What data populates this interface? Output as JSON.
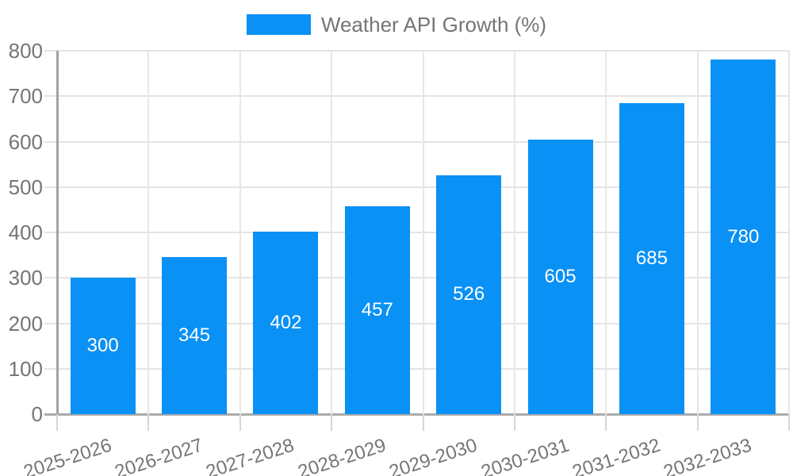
{
  "chart_data": {
    "type": "bar",
    "title": "",
    "xlabel": "",
    "ylabel": "",
    "legend": {
      "label": "Weather API Growth (%)",
      "position": "top-center"
    },
    "categories": [
      "2025-2026",
      "2026-2027",
      "2027-2028",
      "2028-2029",
      "2029-2030",
      "2030-2031",
      "2031-2032",
      "2032-2033"
    ],
    "series": [
      {
        "name": "Weather API Growth (%)",
        "values": [
          300,
          345,
          402,
          457,
          526,
          605,
          685,
          780
        ]
      }
    ],
    "value_labels_shown": true,
    "value_label_position": "inside-center",
    "ylim": [
      0,
      800
    ],
    "yticks": [
      0,
      100,
      200,
      300,
      400,
      500,
      600,
      700,
      800
    ],
    "grid": "horizontal-and-vertical",
    "x_labels_rotated": true,
    "colors": {
      "bar": "#0a91f5",
      "value_label": "#ffffff",
      "axis_text": "#757575",
      "axis_line": "#a6a6a6",
      "gridline": "#e5e5e5",
      "background": "#ffffff"
    }
  }
}
